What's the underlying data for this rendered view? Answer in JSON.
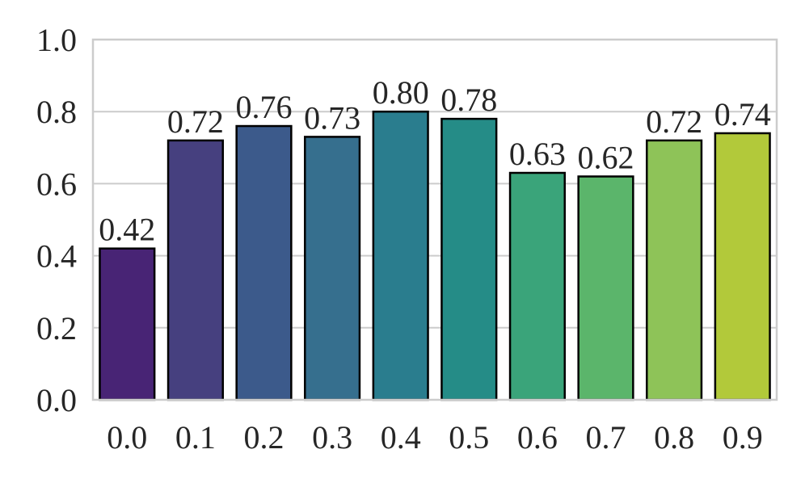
{
  "chart_data": {
    "type": "bar",
    "title": "",
    "xlabel": "",
    "ylabel": "",
    "categories": [
      "0.0",
      "0.1",
      "0.2",
      "0.3",
      "0.4",
      "0.5",
      "0.6",
      "0.7",
      "0.8",
      "0.9"
    ],
    "values": [
      0.42,
      0.72,
      0.76,
      0.73,
      0.8,
      0.78,
      0.63,
      0.62,
      0.72,
      0.74
    ],
    "data_labels": [
      "0.42",
      "0.72",
      "0.76",
      "0.73",
      "0.80",
      "0.78",
      "0.63",
      "0.62",
      "0.72",
      "0.74"
    ],
    "ylim": [
      0,
      1.0
    ],
    "y_ticks": [
      "0.0",
      "0.2",
      "0.4",
      "0.6",
      "0.8",
      "1.0"
    ],
    "grid": "horizontal",
    "legend": "none",
    "colors": [
      "#482475",
      "#46407f",
      "#3c5a8b",
      "#366f8e",
      "#2a7d8e",
      "#258c87",
      "#3aa47a",
      "#5bb56b",
      "#8ec358",
      "#b2c93a"
    ],
    "edge_color": "#000000",
    "grid_color": "#cccccc",
    "frame_color": "#cccccc"
  }
}
